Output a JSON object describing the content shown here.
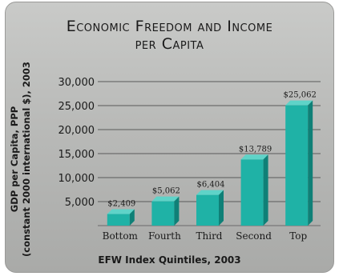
{
  "chart_data": {
    "type": "bar",
    "title_line1": "Economic Freedom and Income",
    "title_line2": "per Capita",
    "ylabel_line1": "GDP per Capita, PPP",
    "ylabel_line2": "(constant 2000 international $), 2003",
    "xlabel": "EFW Index Quintiles, 2003",
    "categories": [
      "Bottom",
      "Fourth",
      "Third",
      "Second",
      "Top"
    ],
    "values": [
      2409,
      5062,
      6404,
      13789,
      25062
    ],
    "data_labels": [
      "$2,409",
      "$5,062",
      "$6,404",
      "$13,789",
      "$25,062"
    ],
    "yticks": [
      5000,
      10000,
      15000,
      20000,
      25000,
      30000
    ],
    "ytick_labels": [
      "5,000",
      "10,000",
      "15,000",
      "20,000",
      "25,000",
      "30,000"
    ],
    "ylim": [
      0,
      30000
    ],
    "grid": true,
    "colors": {
      "bar_front": "#1fb2a6",
      "bar_top": "#5fd3c8",
      "bar_side": "#0f8077",
      "grid": "#5a5a5a"
    }
  }
}
